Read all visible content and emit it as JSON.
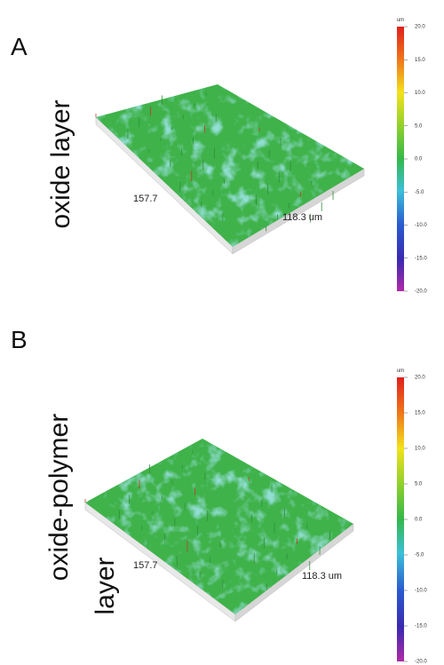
{
  "panels": [
    {
      "letter": "A",
      "side_label": [
        "oxide layer"
      ],
      "x_label": "157.7",
      "y_label": "118.3 um",
      "colorbar": {
        "unit": "um",
        "ticks": [
          "20.0",
          "15.0",
          "10.0",
          "5.0",
          "0.0",
          "-5.0",
          "-10.0",
          "-15.0",
          "-20.0"
        ]
      }
    },
    {
      "letter": "B",
      "side_label": [
        "oxide-polymer",
        "layer"
      ],
      "x_label": "157.7",
      "y_label": "118.3 um",
      "colorbar": {
        "unit": "um",
        "ticks": [
          "20.0",
          "15.0",
          "10.0",
          "5.0",
          "0.0",
          "-5.0",
          "-10.0",
          "-15.0",
          "-20.0"
        ]
      }
    }
  ]
}
